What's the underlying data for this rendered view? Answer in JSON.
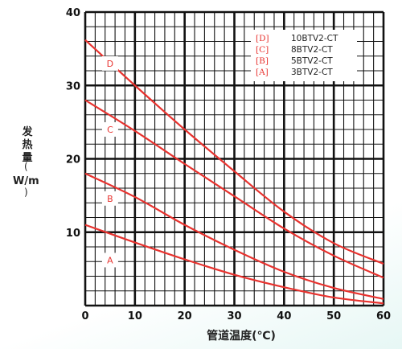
{
  "chart_data": {
    "type": "line",
    "title": "",
    "xlabel": "管道温度(℃)",
    "ylabel": [
      "发",
      "热",
      "量",
      "(",
      "W/m",
      ")"
    ],
    "xlim": [
      0,
      60
    ],
    "ylim": [
      0,
      40
    ],
    "x_ticks": [
      "0",
      "10",
      "20",
      "30",
      "40",
      "50",
      "60"
    ],
    "y_ticks": [
      "10",
      "20",
      "30",
      "40"
    ],
    "grid": true,
    "legend_position": "top-right",
    "legend": [
      {
        "tag": "[D]",
        "name": "10BTV2-CT"
      },
      {
        "tag": "[C]",
        "name": "8BTV2-CT"
      },
      {
        "tag": "[B]",
        "name": "5BTV2-CT"
      },
      {
        "tag": "[A]",
        "name": "3BTV2-CT"
      }
    ],
    "series": [
      {
        "name": "10BTV2-CT",
        "marker": "D",
        "label_x": 5,
        "label_y": 33,
        "x": [
          0,
          10,
          20,
          30,
          40,
          50,
          60
        ],
        "y": [
          36.2,
          30.0,
          24.0,
          18.3,
          12.8,
          8.5,
          5.7
        ]
      },
      {
        "name": "8BTV2-CT",
        "marker": "C",
        "label_x": 5,
        "label_y": 24,
        "x": [
          0,
          10,
          20,
          30,
          40,
          50,
          60
        ],
        "y": [
          28.0,
          23.8,
          19.3,
          14.9,
          10.5,
          6.8,
          3.8
        ]
      },
      {
        "name": "5BTV2-CT",
        "marker": "B",
        "label_x": 5,
        "label_y": 14.6,
        "x": [
          0,
          10,
          20,
          30,
          40,
          50,
          60
        ],
        "y": [
          18.0,
          14.8,
          11.0,
          7.6,
          4.6,
          2.4,
          0.9
        ]
      },
      {
        "name": "3BTV2-CT",
        "marker": "A",
        "label_x": 5,
        "label_y": 6.2,
        "x": [
          0,
          10,
          20,
          30,
          40,
          50,
          60
        ],
        "y": [
          11.0,
          8.6,
          6.3,
          4.2,
          2.5,
          1.1,
          0.3
        ]
      }
    ],
    "colors": {
      "line": "#e8322e",
      "grid": "#111111",
      "label_text": "#e8322e"
    }
  }
}
